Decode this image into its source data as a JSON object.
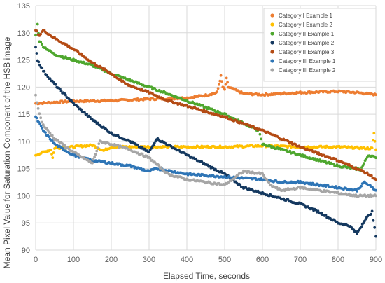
{
  "chart_data": {
    "type": "scatter",
    "xlabel": "Elapsed Time, seconds",
    "ylabel": "Mean Pixel Value for Saturation Component of the HSB image",
    "xlim": [
      0,
      900
    ],
    "ylim": [
      90,
      135
    ],
    "xticks": [
      0,
      100,
      200,
      300,
      400,
      500,
      600,
      700,
      800,
      900
    ],
    "yticks": [
      90,
      95,
      100,
      105,
      110,
      115,
      120,
      125,
      130,
      135
    ],
    "grid": true,
    "legend_position": "top-right",
    "series": [
      {
        "name": "Category I Example 1",
        "color": "#ED7D31",
        "points": [
          [
            0,
            117.0
          ],
          [
            100,
            117.4
          ],
          [
            200,
            117.5
          ],
          [
            300,
            117.8
          ],
          [
            400,
            118.0
          ],
          [
            450,
            118.5
          ],
          [
            480,
            119.0
          ],
          [
            485,
            120.5
          ],
          [
            490,
            122.0
          ],
          [
            495,
            120.0
          ],
          [
            500,
            119.5
          ],
          [
            505,
            121.5
          ],
          [
            510,
            120.0
          ],
          [
            550,
            118.8
          ],
          [
            600,
            118.6
          ],
          [
            700,
            119.0
          ],
          [
            800,
            119.2
          ],
          [
            850,
            119.0
          ],
          [
            900,
            118.6
          ]
        ]
      },
      {
        "name": "Category I Example 2",
        "color": "#FFC000",
        "points": [
          [
            0,
            107.5
          ],
          [
            20,
            108.0
          ],
          [
            40,
            108.5
          ],
          [
            45,
            107.0
          ],
          [
            50,
            108.8
          ],
          [
            100,
            109.0
          ],
          [
            150,
            109.3
          ],
          [
            180,
            108.3
          ],
          [
            200,
            109.0
          ],
          [
            300,
            109.0
          ],
          [
            400,
            109.0
          ],
          [
            500,
            109.0
          ],
          [
            600,
            109.2
          ],
          [
            700,
            109.0
          ],
          [
            800,
            109.0
          ],
          [
            890,
            108.7
          ],
          [
            895,
            111.5
          ],
          [
            900,
            108.5
          ]
        ]
      },
      {
        "name": "Category II Example 1",
        "color": "#4EA72E",
        "points": [
          [
            0,
            129.5
          ],
          [
            5,
            131.5
          ],
          [
            10,
            128.5
          ],
          [
            20,
            127.5
          ],
          [
            50,
            126.0
          ],
          [
            100,
            125.0
          ],
          [
            150,
            124.0
          ],
          [
            200,
            122.5
          ],
          [
            300,
            120.0
          ],
          [
            400,
            117.5
          ],
          [
            500,
            115.0
          ],
          [
            590,
            112.0
          ],
          [
            600,
            109.5
          ],
          [
            700,
            107.5
          ],
          [
            800,
            105.5
          ],
          [
            860,
            104.8
          ],
          [
            880,
            107.5
          ],
          [
            900,
            107.0
          ]
        ]
      },
      {
        "name": "Category II Example 2",
        "color": "#14385F",
        "points": [
          [
            0,
            127.5
          ],
          [
            5,
            125.0
          ],
          [
            20,
            123.0
          ],
          [
            50,
            120.5
          ],
          [
            100,
            117.0
          ],
          [
            150,
            114.0
          ],
          [
            200,
            111.5
          ],
          [
            250,
            110.0
          ],
          [
            300,
            108.0
          ],
          [
            320,
            110.5
          ],
          [
            400,
            107.5
          ],
          [
            500,
            104.0
          ],
          [
            550,
            101.5
          ],
          [
            600,
            100.5
          ],
          [
            650,
            99.5
          ],
          [
            700,
            98.5
          ],
          [
            750,
            97.0
          ],
          [
            800,
            95.0
          ],
          [
            830,
            94.5
          ],
          [
            850,
            93.0
          ],
          [
            870,
            95.5
          ],
          [
            890,
            97.0
          ],
          [
            900,
            92.5
          ]
        ]
      },
      {
        "name": "Category II Example 3",
        "color": "#B44B14",
        "points": [
          [
            0,
            130.5
          ],
          [
            10,
            129.5
          ],
          [
            20,
            130.5
          ],
          [
            50,
            129.0
          ],
          [
            100,
            127.0
          ],
          [
            150,
            124.5
          ],
          [
            200,
            122.5
          ],
          [
            240,
            120.5
          ],
          [
            260,
            120.0
          ],
          [
            300,
            119.0
          ],
          [
            350,
            117.5
          ],
          [
            400,
            116.5
          ],
          [
            500,
            114.5
          ],
          [
            600,
            112.0
          ],
          [
            650,
            110.5
          ],
          [
            700,
            109.0
          ],
          [
            800,
            106.5
          ],
          [
            850,
            105.0
          ],
          [
            880,
            104.0
          ],
          [
            900,
            103.0
          ]
        ]
      },
      {
        "name": "Category III Example 1",
        "color": "#2E75B6",
        "points": [
          [
            0,
            114.5
          ],
          [
            20,
            112.0
          ],
          [
            50,
            109.5
          ],
          [
            100,
            107.5
          ],
          [
            150,
            106.5
          ],
          [
            200,
            106.0
          ],
          [
            250,
            105.5
          ],
          [
            300,
            104.5
          ],
          [
            320,
            105.0
          ],
          [
            400,
            104.0
          ],
          [
            500,
            103.5
          ],
          [
            600,
            103.0
          ],
          [
            650,
            102.5
          ],
          [
            700,
            102.5
          ],
          [
            750,
            102.0
          ],
          [
            800,
            101.5
          ],
          [
            850,
            101.0
          ],
          [
            870,
            102.5
          ],
          [
            900,
            101.0
          ]
        ]
      },
      {
        "name": "Category III Example 2",
        "color": "#A6A6A6",
        "points": [
          [
            0,
            118.5
          ],
          [
            10,
            115.0
          ],
          [
            20,
            113.0
          ],
          [
            50,
            110.5
          ],
          [
            100,
            108.0
          ],
          [
            150,
            106.0
          ],
          [
            170,
            110.0
          ],
          [
            200,
            109.5
          ],
          [
            250,
            108.5
          ],
          [
            300,
            107.0
          ],
          [
            350,
            104.0
          ],
          [
            400,
            103.0
          ],
          [
            500,
            102.0
          ],
          [
            550,
            104.5
          ],
          [
            600,
            104.0
          ],
          [
            620,
            102.0
          ],
          [
            650,
            101.0
          ],
          [
            700,
            101.5
          ],
          [
            800,
            100.5
          ],
          [
            850,
            100.0
          ],
          [
            900,
            100.0
          ]
        ]
      }
    ]
  }
}
